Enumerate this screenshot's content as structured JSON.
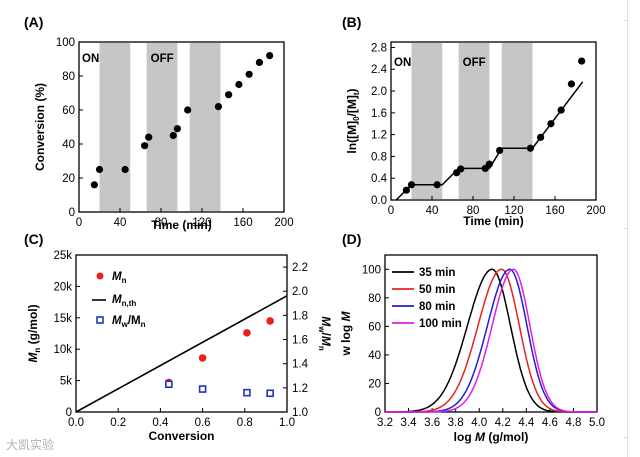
{
  "watermark": "大凯实验",
  "chart_data": [
    {
      "panel": "(A)",
      "type": "scatter",
      "xlabel": "Time (min)",
      "ylabel": "Conversion (%)",
      "xlim": [
        0,
        200
      ],
      "ylim": [
        0,
        100
      ],
      "xticks": [
        0,
        40,
        80,
        120,
        160,
        200
      ],
      "yticks": [
        0,
        20,
        40,
        60,
        80,
        100
      ],
      "annotations": [
        "ON",
        "OFF"
      ],
      "off_bands": [
        [
          20,
          50
        ],
        [
          66,
          96
        ],
        [
          108,
          138
        ]
      ],
      "series": [
        {
          "points": [
            [
              15,
              16
            ],
            [
              20,
              25
            ],
            [
              45,
              25
            ],
            [
              64,
              39
            ],
            [
              68,
              44
            ],
            [
              92,
              45
            ],
            [
              96,
              49
            ],
            [
              106,
              60
            ],
            [
              136,
              62
            ],
            [
              146,
              69
            ],
            [
              156,
              75
            ],
            [
              166,
              81
            ],
            [
              176,
              88
            ],
            [
              186,
              92
            ]
          ]
        }
      ]
    },
    {
      "panel": "(B)",
      "type": "scatter",
      "xlabel": "Time (min)",
      "ylabel": "ln([M]0/[M]t)",
      "ylabel_main": "ln([M]",
      "ylabel_sub0": "0",
      "ylabel_mid": "/[M]",
      "ylabel_subt": "t",
      "ylabel_end": ")",
      "xlim": [
        0,
        200
      ],
      "ylim": [
        0,
        2.9
      ],
      "xticks": [
        0,
        40,
        80,
        120,
        160,
        200
      ],
      "yticks": [
        0,
        0.4,
        0.8,
        1.2,
        1.6,
        2.0,
        2.4,
        2.8
      ],
      "ytick_labels": [
        "0.0",
        "0.4",
        "0.8",
        "1.2",
        "1.6",
        "2.0",
        "2.4",
        "2.8"
      ],
      "annotations": [
        "ON",
        "OFF"
      ],
      "off_bands": [
        [
          20,
          50
        ],
        [
          66,
          96
        ],
        [
          108,
          138
        ]
      ],
      "series": [
        {
          "points": [
            [
              15,
              0.18
            ],
            [
              20,
              0.28
            ],
            [
              45,
              0.28
            ],
            [
              64,
              0.5
            ],
            [
              68,
              0.57
            ],
            [
              92,
              0.58
            ],
            [
              96,
              0.66
            ],
            [
              106,
              0.91
            ],
            [
              136,
              0.95
            ],
            [
              146,
              1.15
            ],
            [
              156,
              1.4
            ],
            [
              166,
              1.65
            ],
            [
              176,
              2.13
            ],
            [
              186,
              2.55
            ]
          ]
        },
        {
          "line": [
            [
              5,
              0
            ],
            [
              20,
              0.28
            ],
            [
              50,
              0.28
            ],
            [
              66,
              0.58
            ],
            [
              96,
              0.58
            ],
            [
              108,
              0.95
            ],
            [
              138,
              0.95
            ],
            [
              187,
              2.17
            ]
          ]
        }
      ]
    },
    {
      "panel": "(C)",
      "type": "scatter",
      "xlabel": "Conversion",
      "ylabel": "Mn (g/mol)",
      "ylabel_main": "M",
      "ylabel_sub": "n",
      "ylabel_rest": " (g/mol)",
      "y2label": "Mw/Mn",
      "xlim": [
        0,
        1.0
      ],
      "ylim": [
        0,
        25000
      ],
      "y2lim": [
        1.0,
        2.3
      ],
      "xticks": [
        0,
        0.2,
        0.4,
        0.6,
        0.8,
        1.0
      ],
      "xtick_labels": [
        "0.0",
        "0.2",
        "0.4",
        "0.6",
        "0.8",
        "1.0"
      ],
      "yticks": [
        0,
        5000,
        10000,
        15000,
        20000,
        25000
      ],
      "ytick_labels": [
        "0",
        "5k",
        "10k",
        "15k",
        "20k",
        "25k"
      ],
      "y2ticks": [
        1.0,
        1.2,
        1.4,
        1.6,
        1.8,
        2.0,
        2.2
      ],
      "y2tick_labels": [
        "1.0",
        "1.2",
        "1.4",
        "1.6",
        "1.8",
        "2.0",
        "2.2"
      ],
      "legend": [
        {
          "main": "M",
          "sub": "n"
        },
        {
          "main": "M",
          "sub": "n,th"
        },
        {
          "main": "M",
          "sub": "w",
          "mid": "/M",
          "sub2": "n"
        }
      ],
      "legend_placement": "top-left",
      "series": [
        {
          "name": "Mn",
          "color": "#e8201d",
          "points": [
            [
              0.44,
              4700
            ],
            [
              0.6,
              8600
            ],
            [
              0.81,
              12600
            ],
            [
              0.92,
              14500
            ]
          ]
        },
        {
          "name": "Mn,th",
          "color": "#000000",
          "line": [
            [
              0,
              0
            ],
            [
              1.0,
              18500
            ]
          ]
        },
        {
          "name": "Mw/Mn",
          "color": "#2233bb",
          "axis": "y2",
          "points": [
            [
              0.44,
              1.23
            ],
            [
              0.6,
              1.19
            ],
            [
              0.81,
              1.16
            ],
            [
              0.92,
              1.155
            ]
          ]
        }
      ]
    },
    {
      "panel": "(D)",
      "type": "line",
      "xlabel": "log M (g/mol)",
      "xlabel_pre": "log ",
      "xlabel_it": "M",
      "xlabel_post": " (g/mol)",
      "ylabel": "w log M",
      "xlim": [
        3.2,
        5.0
      ],
      "ylim": [
        0,
        110
      ],
      "xticks": [
        3.2,
        3.4,
        3.6,
        3.8,
        4.0,
        4.2,
        4.4,
        4.6,
        4.8,
        5.0
      ],
      "xtick_labels": [
        "3.2",
        "3.4",
        "3.6",
        "3.8",
        "4.0",
        "4.2",
        "4.4",
        "4.6",
        "4.8",
        "5.0"
      ],
      "yticks": [
        0,
        20,
        40,
        60,
        80,
        100
      ],
      "legend_placement": "top-left",
      "series": [
        {
          "name": "35 min",
          "color": "#000000",
          "peak": 4.11,
          "sigma_left": 0.21,
          "sigma_right": 0.155
        },
        {
          "name": "50 min",
          "color": "#e3241f",
          "peak": 4.19,
          "sigma_left": 0.2,
          "sigma_right": 0.15
        },
        {
          "name": "80 min",
          "color": "#1f1fcc",
          "peak": 4.26,
          "sigma_left": 0.19,
          "sigma_right": 0.145
        },
        {
          "name": "100 min",
          "color": "#e020e0",
          "peak": 4.29,
          "sigma_left": 0.18,
          "sigma_right": 0.14
        }
      ]
    }
  ]
}
